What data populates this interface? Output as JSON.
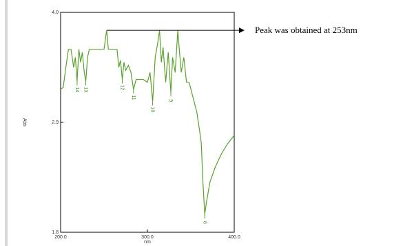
{
  "chart_data": {
    "type": "line",
    "xlabel": "nm",
    "ylabel": "Abs",
    "xlim": [
      200,
      400
    ],
    "ylim": [
      1.8,
      4.0
    ],
    "xticks": [
      {
        "value": 200,
        "label": "200.0"
      },
      {
        "value": 300,
        "label": "300.0"
      },
      {
        "value": 400,
        "label": "400.0"
      }
    ],
    "yticks": [
      {
        "value": 1.8,
        "label": "1.8"
      },
      {
        "value": 2.9,
        "label": "2.9"
      },
      {
        "value": 4.0,
        "label": "4.0"
      }
    ],
    "color": "#5aa02c",
    "x": [
      200,
      203,
      206,
      209,
      212,
      215,
      217,
      219,
      221,
      223,
      225,
      227,
      229,
      231,
      233,
      236,
      240,
      245,
      250,
      253,
      255,
      260,
      265,
      267,
      269,
      271,
      273,
      275,
      278,
      281,
      284,
      287,
      290,
      295,
      300,
      303,
      306,
      309,
      312,
      314,
      316,
      318,
      321,
      324,
      327,
      329,
      332,
      335,
      337,
      339,
      342,
      345,
      348,
      351,
      354,
      357,
      360,
      362,
      364,
      366,
      368,
      372,
      378,
      385,
      392,
      400
    ],
    "values": [
      3.23,
      3.25,
      3.45,
      3.63,
      3.63,
      3.45,
      3.55,
      3.31,
      3.63,
      3.5,
      3.6,
      3.42,
      3.31,
      3.55,
      3.63,
      3.63,
      3.63,
      3.63,
      3.63,
      3.82,
      3.63,
      3.63,
      3.63,
      3.45,
      3.52,
      3.33,
      3.5,
      3.42,
      3.47,
      3.4,
      3.23,
      3.33,
      3.33,
      3.33,
      3.3,
      3.4,
      3.11,
      3.55,
      3.7,
      3.82,
      3.5,
      3.65,
      3.3,
      3.6,
      3.2,
      3.55,
      3.4,
      3.82,
      3.6,
      3.4,
      3.55,
      3.3,
      3.3,
      3.2,
      3.1,
      3.0,
      2.82,
      2.7,
      2.3,
      1.98,
      2.1,
      2.3,
      2.45,
      2.58,
      2.68,
      2.77
    ],
    "peak_labels": [
      {
        "text": "14",
        "x": 219,
        "y": 3.31
      },
      {
        "text": "13",
        "x": 229,
        "y": 3.31
      },
      {
        "text": "12",
        "x": 271,
        "y": 3.33
      },
      {
        "text": "11",
        "x": 284,
        "y": 3.23
      },
      {
        "text": "10",
        "x": 306,
        "y": 3.11
      },
      {
        "text": "9",
        "x": 327,
        "y": 3.2
      },
      {
        "text": "8",
        "x": 366,
        "y": 1.98
      }
    ],
    "annotation": {
      "text": "Peak was obtained at 253nm",
      "x": 253,
      "y": 3.82
    }
  }
}
